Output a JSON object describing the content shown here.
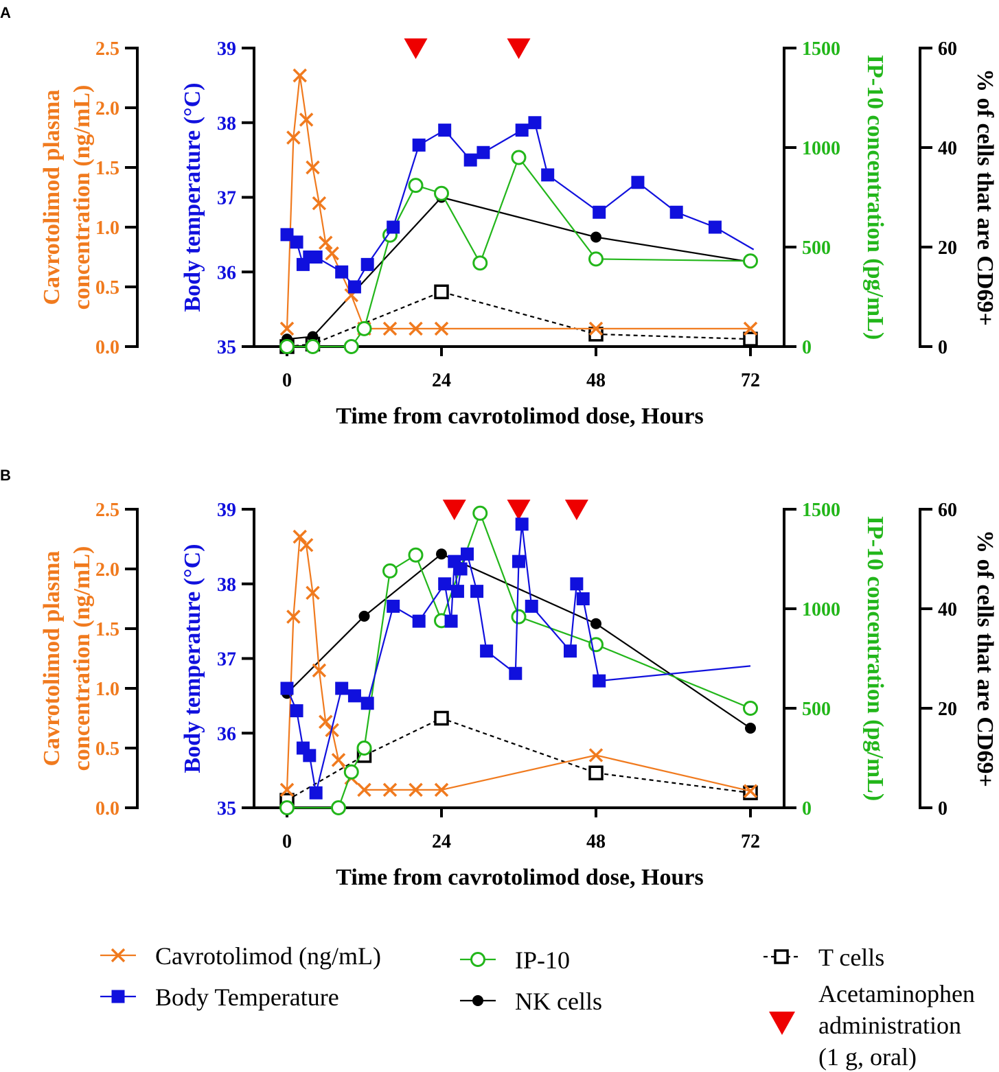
{
  "colors": {
    "cavrotolimod": "#F07A1E",
    "temperature": "#1010DD",
    "ip10": "#22B61A",
    "nk": "#000000",
    "tcells": "#000000",
    "acetaminophen": "#EE0000"
  },
  "legend": {
    "cavrotolimod": "Cavrotolimod (ng/mL)",
    "temperature": "Body Temperature",
    "ip10": "IP-10",
    "nk": "NK cells",
    "tcells": "T cells",
    "acetaminophen_lines": [
      "Acetaminophen",
      "administration",
      "(1 g, oral)"
    ]
  },
  "chart_data": [
    {
      "panel": "A",
      "type": "line",
      "xlabel": "Time from cavrotolimod dose, Hours",
      "xlim": [
        0,
        72
      ],
      "xticks": [
        0,
        24,
        48,
        72
      ],
      "axes": {
        "cavrotolimod": {
          "label_lines": [
            "Cavrotolimod plasma",
            "concentration (ng/mL)"
          ],
          "ylim": [
            0,
            2.5
          ],
          "ticks": [
            "0.0",
            "0.5",
            "1.0",
            "1.5",
            "2.0",
            "2.5"
          ]
        },
        "temperature": {
          "label_lines": [
            "Body temperature (°C)"
          ],
          "ylim": [
            35,
            39
          ],
          "ticks": [
            "35",
            "36",
            "37",
            "38",
            "39"
          ]
        },
        "ip10": {
          "label_lines": [
            "IP-10 concentration (pg/mL)"
          ],
          "ylim": [
            0,
            1500
          ],
          "ticks": [
            "0",
            "500",
            "1000",
            "1500"
          ]
        },
        "cd69": {
          "label_lines": [
            "% of cells that are CD69+"
          ],
          "ylim": [
            0,
            60
          ],
          "ticks": [
            "0",
            "20",
            "40",
            "60"
          ]
        }
      },
      "series": [
        {
          "key": "cavrotolimod",
          "axis": "cavrotolimod",
          "marker": "x",
          "dash": false,
          "x": [
            0,
            1,
            2,
            3,
            4,
            5,
            6,
            7,
            10,
            12,
            16,
            20,
            24,
            48,
            72
          ],
          "y": [
            0.15,
            1.75,
            2.27,
            1.9,
            1.5,
            1.2,
            0.87,
            0.78,
            0.43,
            0.15,
            0.15,
            0.15,
            0.15,
            0.15,
            0.15
          ]
        },
        {
          "key": "temperature",
          "axis": "temperature",
          "marker": "filled-square",
          "dash": false,
          "x": [
            0,
            1.5,
            2.5,
            3.5,
            4.5,
            8.5,
            10.5,
            12.5,
            16.5,
            20.5,
            24.5,
            28.5,
            30.5,
            36.5,
            38.5,
            40.5,
            48.5,
            54.5,
            60.5,
            66.5,
            72.5
          ],
          "y": [
            36.5,
            36.4,
            36.1,
            36.2,
            36.2,
            36.0,
            35.8,
            36.1,
            36.6,
            37.7,
            37.9,
            37.5,
            37.6,
            37.9,
            38.0,
            37.3,
            36.8,
            37.2,
            36.8,
            36.6,
            36.3
          ]
        },
        {
          "key": "ip10",
          "axis": "ip10",
          "marker": "open-circle",
          "dash": false,
          "x": [
            0,
            4,
            10,
            12,
            16,
            20,
            24,
            30,
            36,
            48,
            72
          ],
          "y": [
            0,
            0,
            0,
            90,
            560,
            810,
            770,
            420,
            950,
            440,
            430
          ]
        },
        {
          "key": "nk",
          "axis": "cd69",
          "marker": "filled-circle",
          "dash": false,
          "x": [
            0,
            4,
            24,
            48,
            72
          ],
          "y": [
            1.5,
            2,
            30,
            22,
            17
          ]
        },
        {
          "key": "tcells",
          "axis": "cd69",
          "marker": "open-square",
          "dash": true,
          "x": [
            0,
            4,
            24,
            48,
            72
          ],
          "y": [
            0,
            0.5,
            11,
            2.5,
            1.5
          ]
        }
      ],
      "acetaminophen_times": [
        20,
        36
      ]
    },
    {
      "panel": "B",
      "type": "line",
      "xlabel": "Time from cavrotolimod dose, Hours",
      "xlim": [
        0,
        72
      ],
      "xticks": [
        0,
        24,
        48,
        72
      ],
      "axes": {
        "cavrotolimod": {
          "label_lines": [
            "Cavrotolimod plasma",
            "concentration (ng/mL)"
          ],
          "ylim": [
            0,
            2.5
          ],
          "ticks": [
            "0.0",
            "0.5",
            "1.0",
            "1.5",
            "2.0",
            "2.5"
          ]
        },
        "temperature": {
          "label_lines": [
            "Body temperature (°C)"
          ],
          "ylim": [
            35,
            39
          ],
          "ticks": [
            "35",
            "36",
            "37",
            "38",
            "39"
          ]
        },
        "ip10": {
          "label_lines": [
            "IP-10 concentration (pg/mL)"
          ],
          "ylim": [
            0,
            1500
          ],
          "ticks": [
            "0",
            "500",
            "1000",
            "1500"
          ]
        },
        "cd69": {
          "label_lines": [
            "% of cells that are CD69+"
          ],
          "ylim": [
            0,
            60
          ],
          "ticks": [
            "0",
            "20",
            "40",
            "60"
          ]
        }
      },
      "series": [
        {
          "key": "cavrotolimod",
          "axis": "cavrotolimod",
          "marker": "x",
          "dash": false,
          "x": [
            0,
            1,
            2,
            3,
            4,
            5,
            6,
            7,
            8,
            10,
            12,
            16,
            20,
            24,
            48,
            72
          ],
          "y": [
            0.15,
            1.6,
            2.27,
            2.2,
            1.8,
            1.15,
            0.72,
            0.65,
            0.4,
            0.25,
            0.15,
            0.15,
            0.15,
            0.15,
            0.44,
            0.14
          ]
        },
        {
          "key": "temperature",
          "axis": "temperature",
          "marker": "filled-square",
          "dash": false,
          "x": [
            0,
            1.5,
            2.5,
            3.5,
            4.5,
            8.5,
            10.5,
            12.5,
            16.5,
            20.5,
            24.5,
            25.5,
            26,
            26.5,
            27,
            28,
            29.5,
            31,
            35.5,
            36,
            36.5,
            38,
            44,
            45,
            46,
            48.5,
            72
          ],
          "y": [
            36.6,
            36.3,
            35.8,
            35.7,
            35.2,
            36.6,
            36.5,
            36.4,
            37.7,
            37.5,
            38.0,
            37.5,
            38.3,
            37.9,
            38.2,
            38.4,
            37.9,
            37.1,
            36.8,
            38.3,
            38.8,
            37.7,
            37.1,
            38.0,
            37.8,
            36.7,
            36.9
          ]
        },
        {
          "key": "ip10",
          "axis": "ip10",
          "marker": "open-circle",
          "dash": false,
          "x": [
            0,
            8,
            10,
            12,
            16,
            20,
            24,
            30,
            36,
            48,
            72
          ],
          "y": [
            0,
            0,
            180,
            300,
            1190,
            1270,
            940,
            1480,
            960,
            820,
            500
          ]
        },
        {
          "key": "nk",
          "axis": "cd69",
          "marker": "filled-circle",
          "dash": false,
          "x": [
            0,
            12,
            24,
            48,
            72
          ],
          "y": [
            23,
            38.5,
            51,
            37,
            16
          ]
        },
        {
          "key": "tcells",
          "axis": "cd69",
          "marker": "open-square",
          "dash": true,
          "x": [
            0,
            12,
            24,
            48,
            72
          ],
          "y": [
            1.5,
            10.5,
            18,
            7,
            3
          ]
        }
      ],
      "acetaminophen_times": [
        26,
        36,
        45
      ]
    }
  ]
}
